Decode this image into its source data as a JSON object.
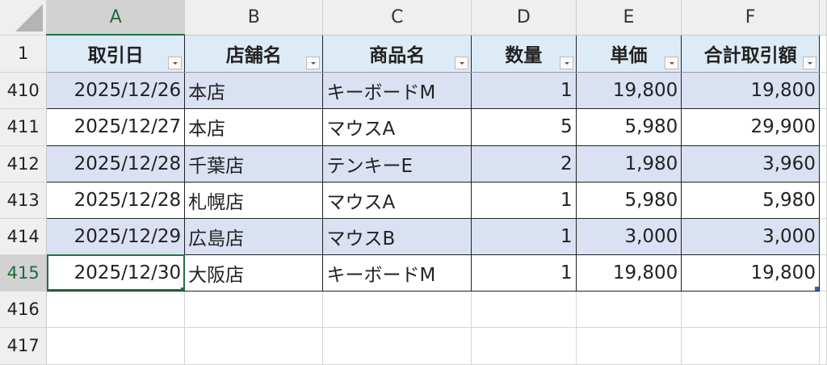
{
  "columns": [
    "A",
    "B",
    "C",
    "D",
    "E",
    "F"
  ],
  "selected_column": "A",
  "selected_row": "415",
  "headers": [
    "取引日",
    "店舗名",
    "商品名",
    "数量",
    "単価",
    "合計取引額"
  ],
  "header_row_number": "1",
  "rows": [
    {
      "num": "410",
      "cells": [
        "2025/12/26",
        "本店",
        "キーボードM",
        "1",
        "19,800",
        "19,800"
      ]
    },
    {
      "num": "411",
      "cells": [
        "2025/12/27",
        "本店",
        "マウスA",
        "5",
        "5,980",
        "29,900"
      ]
    },
    {
      "num": "412",
      "cells": [
        "2025/12/28",
        "千葉店",
        "テンキーE",
        "2",
        "1,980",
        "3,960"
      ]
    },
    {
      "num": "413",
      "cells": [
        "2025/12/28",
        "札幌店",
        "マウスA",
        "1",
        "5,980",
        "5,980"
      ]
    },
    {
      "num": "414",
      "cells": [
        "2025/12/29",
        "広島店",
        "マウスB",
        "1",
        "3,000",
        "3,000"
      ]
    },
    {
      "num": "415",
      "cells": [
        "2025/12/30",
        "大阪店",
        "キーボードM",
        "1",
        "19,800",
        "19,800"
      ]
    }
  ],
  "empty_rows": [
    "416",
    "417"
  ],
  "colors": {
    "header_fill": "#ddebf7",
    "band_fill": "#d9e1f2",
    "selection": "#217346"
  }
}
